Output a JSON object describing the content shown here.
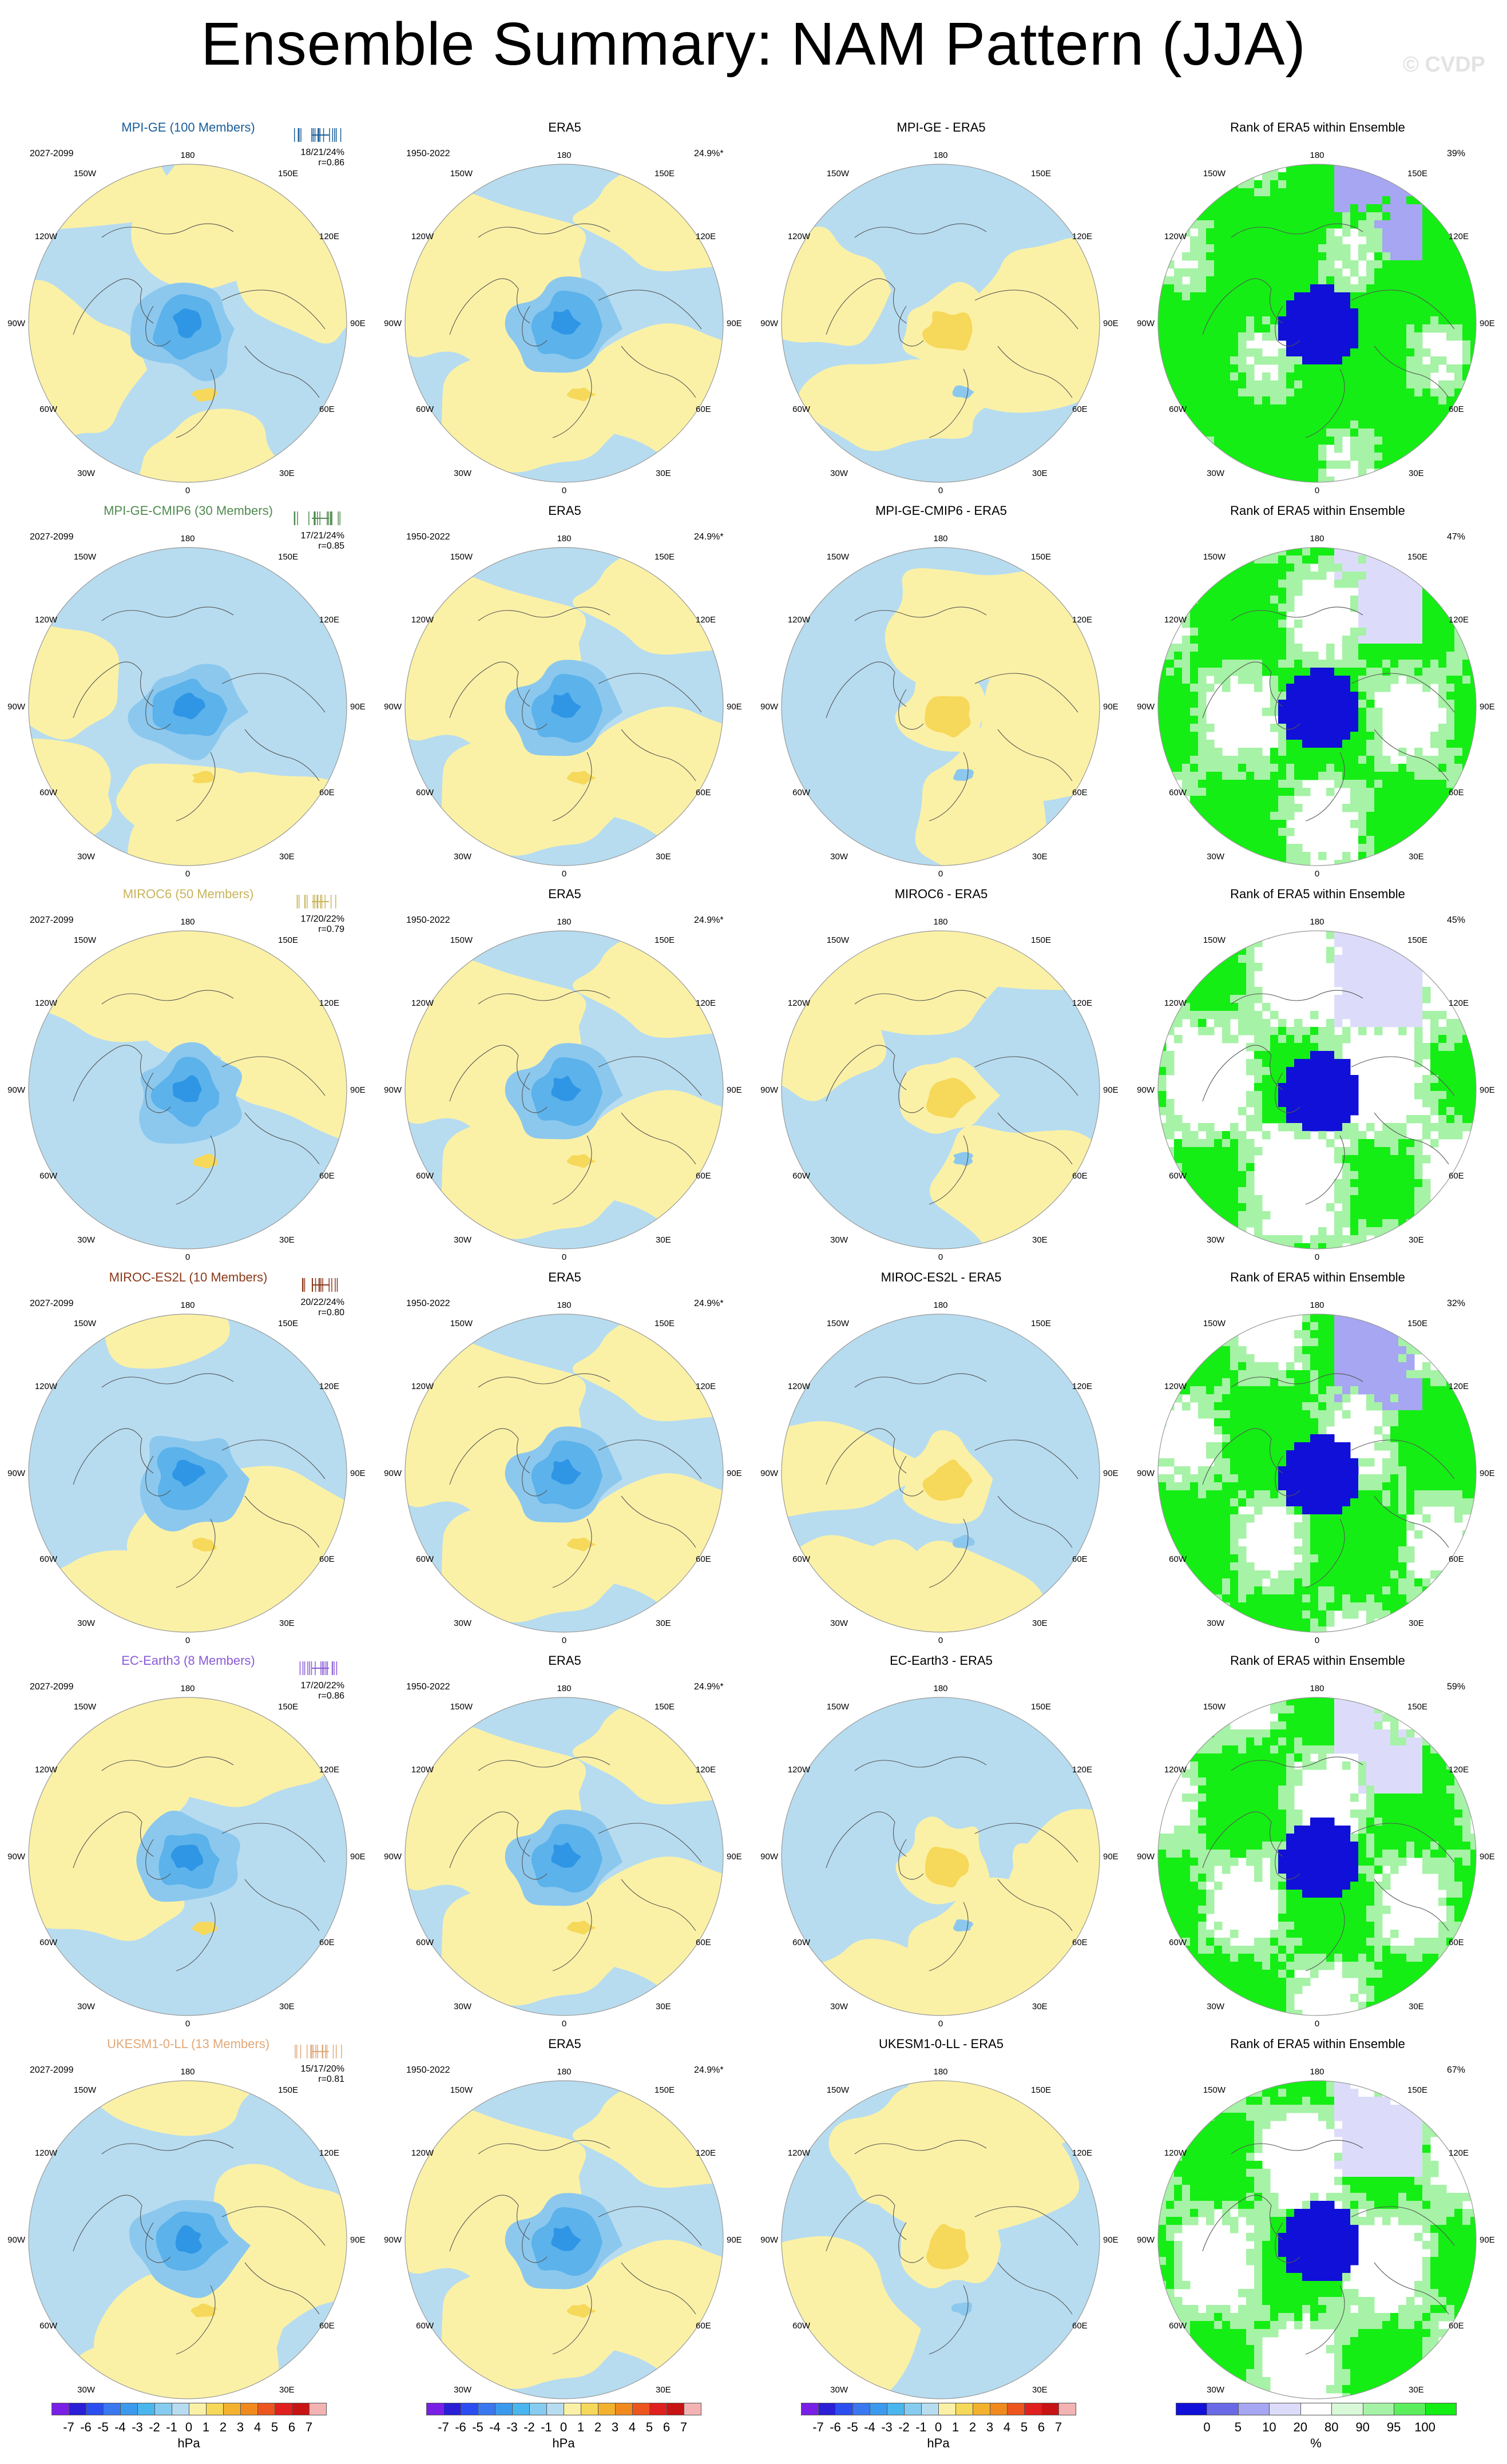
{
  "title": "Ensemble Summary: NAM Pattern (JJA)",
  "copyright": "© CVDP",
  "colors": {
    "land_blue": "#b7dcf0",
    "land_yellow": "#fbf1a6",
    "neg1": "#8cc8ee",
    "neg2": "#5cb2ea",
    "neg3": "#2f96e6",
    "pos1": "#f6d85a",
    "pos2": "#f2bd2e",
    "rank_green": "#14ee14",
    "rank_lightgreen": "#a6f2a6",
    "rank_blue": "#1010d8",
    "rank_lightblue": "#a6a6f2",
    "rank_paleblue": "#dcdcfa",
    "rank_white": "#ffffff"
  },
  "map_labels": {
    "top": "180",
    "top_left": "150W",
    "top_right": "150E",
    "upper_left": "120W",
    "upper_right": "120E",
    "mid_left": "90W",
    "mid_right": "90E",
    "lower_left": "60W",
    "lower_right": "60E",
    "bottom_left": "30W",
    "bottom_right": "30E",
    "bottom": "0"
  },
  "rows": [
    {
      "model": "MPI-GE (100 Members)",
      "model_color": "#1a5e9a",
      "period": "2027-2099",
      "stats_line1": "18/21/24%",
      "stats_line2": "r=0.86",
      "era_title": "ERA5",
      "era_period": "1950-2022",
      "era_pct": "24.9%*",
      "diff_title": "MPI-GE - ERA5",
      "rank_title": "Rank of ERA5 within Ensemble",
      "rank_pct": "39%"
    },
    {
      "model": "MPI-GE-CMIP6 (30 Members)",
      "model_color": "#4f8a4f",
      "period": "2027-2099",
      "stats_line1": "17/21/24%",
      "stats_line2": "r=0.85",
      "era_title": "ERA5",
      "era_period": "1950-2022",
      "era_pct": "24.9%*",
      "diff_title": "MPI-GE-CMIP6 - ERA5",
      "rank_title": "Rank of ERA5 within Ensemble",
      "rank_pct": "47%"
    },
    {
      "model": "MIROC6 (50 Members)",
      "model_color": "#c8b45a",
      "period": "2027-2099",
      "stats_line1": "17/20/22%",
      "stats_line2": "r=0.79",
      "era_title": "ERA5",
      "era_period": "1950-2022",
      "era_pct": "24.9%*",
      "diff_title": "MIROC6 - ERA5",
      "rank_title": "Rank of ERA5 within Ensemble",
      "rank_pct": "45%"
    },
    {
      "model": "MIROC-ES2L (10 Members)",
      "model_color": "#8b3a1a",
      "period": "2027-2099",
      "stats_line1": "20/22/24%",
      "stats_line2": "r=0.80",
      "era_title": "ERA5",
      "era_period": "1950-2022",
      "era_pct": "24.9%*",
      "diff_title": "MIROC-ES2L - ERA5",
      "rank_title": "Rank of ERA5 within Ensemble",
      "rank_pct": "32%"
    },
    {
      "model": "EC-Earth3 (8 Members)",
      "model_color": "#8a5ad6",
      "period": "2027-2099",
      "stats_line1": "17/20/22%",
      "stats_line2": "r=0.86",
      "era_title": "ERA5",
      "era_period": "1950-2022",
      "era_pct": "24.9%*",
      "diff_title": "EC-Earth3 - ERA5",
      "rank_title": "Rank of ERA5 within Ensemble",
      "rank_pct": "59%"
    },
    {
      "model": "UKESM1-0-LL (13 Members)",
      "model_color": "#e0a878",
      "period": "2027-2099",
      "stats_line1": "15/17/20%",
      "stats_line2": "r=0.81",
      "era_title": "ERA5",
      "era_period": "1950-2022",
      "era_pct": "24.9%*",
      "diff_title": "UKESM1-0-LL - ERA5",
      "rank_title": "Rank of ERA5 within Ensemble",
      "rank_pct": "67%"
    }
  ],
  "colorbar_hpa": {
    "ticks": [
      "-7",
      "-6",
      "-5",
      "-4",
      "-3",
      "-2",
      "-1",
      "0",
      "1",
      "2",
      "3",
      "4",
      "5",
      "6",
      "7"
    ],
    "unit": "hPa",
    "colors": [
      "#7a1fe6",
      "#2a1ed6",
      "#2a4ef0",
      "#3a78f0",
      "#3c9aee",
      "#4ab6ee",
      "#86ccf0",
      "#b7dcf0",
      "#fbf1a6",
      "#f6d85a",
      "#f2b12e",
      "#f08a1e",
      "#ec561e",
      "#e0201e",
      "#c81414",
      "#f3b3b3"
    ]
  },
  "colorbar_rank": {
    "ticks": [
      "0",
      "5",
      "10",
      "20",
      "80",
      "90",
      "95",
      "100"
    ],
    "unit": "%",
    "colors": [
      "#1010d8",
      "#6a6ae6",
      "#a6a6f2",
      "#dcdcfa",
      "#ffffff",
      "#d8f8d8",
      "#a6f2a6",
      "#5cee5c",
      "#14ee14"
    ]
  }
}
